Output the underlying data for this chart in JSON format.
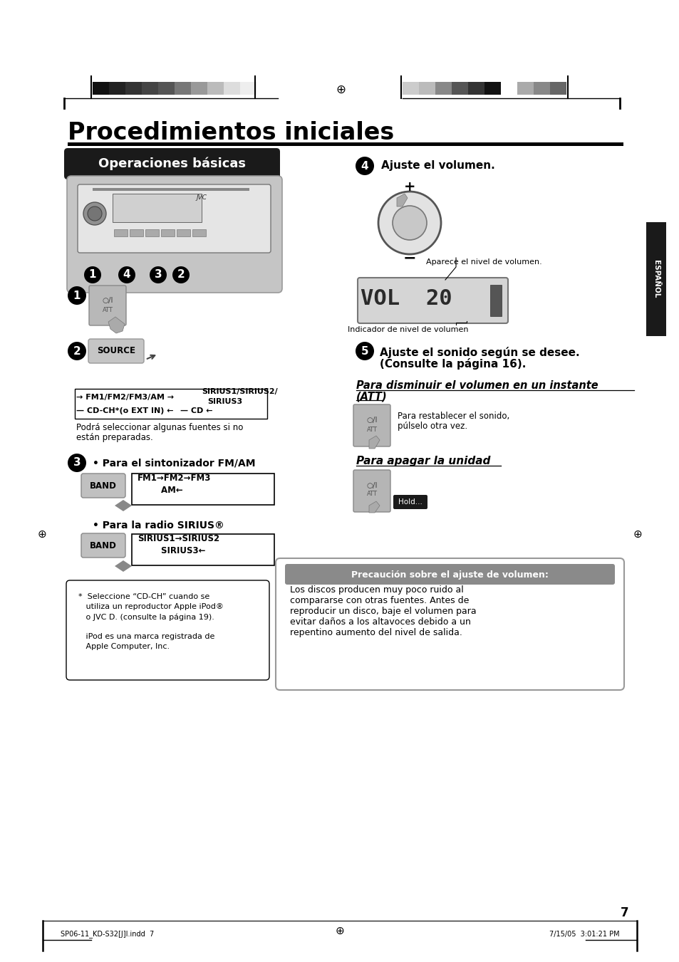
{
  "bg_color": "#ffffff",
  "page_title": "Procedimientos iniciales",
  "section_title": "Operaciones básicas",
  "section_bg": "#1a1a1a",
  "section_text_color": "#ffffff",
  "espanol_bg": "#1a1a1a",
  "espanol_text": "ESPAÑOL",
  "espanol_text_color": "#ffffff",
  "step4_title": "Ajuste el volumen.",
  "step4_sub1": "Aparece el nivel de volumen.",
  "step4_sub2": "Indicador de nivel de volumen",
  "step5_line1": "Ajuste el sonido según se desee.",
  "step5_line2": "(Consulte la página 16).",
  "att_title_line1": "Para disminuir el volumen en un instante",
  "att_title_line2": "(ATT)",
  "att_text1": "Para restablecer el sonido,",
  "att_text2": "púlselo otra vez.",
  "off_title": "Para apagar la unidad",
  "step3_fm": "• Para el sintonizador FM/AM",
  "step3_sirius": "• Para la radio SIRIUS®",
  "source_note1": "Podrá seleccionar algunas fuentes si no",
  "source_note2": "están preparadas.",
  "note_line1": "*  Seleccione “CD-CH” cuando se",
  "note_line2": "   utiliza un reproductor Apple iPod®",
  "note_line3": "   o JVC D. (consulte la página 19).",
  "note_line4": "",
  "note_line5": "   iPod es una marca registrada de",
  "note_line6": "   Apple Computer, Inc.",
  "caution_title": "Precaución sobre el ajuste de volumen:",
  "caution_text1": "Los discos producen muy poco ruido al",
  "caution_text2": "compararse con otras fuentes. Antes de",
  "caution_text3": "reproducir un disco, baje el volumen para",
  "caution_text4": "evitar daños a los altavoces debido a un",
  "caution_text5": "repentino aumento del nivel de salida.",
  "caution_bg": "#8a8a8a",
  "caution_title_color": "#ffffff",
  "footer_left": "SP06-11_KD-S32[J]I.indd  7",
  "footer_right": "7/15/05  3:01:21 PM",
  "footer_page": "7",
  "hold_text": "Hold...",
  "hold_bg": "#1a1a1a",
  "hold_text_color": "#ffffff",
  "colors_left_bar": [
    "#111111",
    "#222222",
    "#333333",
    "#444444",
    "#555555",
    "#777777",
    "#999999",
    "#bbbbbb",
    "#dddddd",
    "#eeeeee"
  ],
  "colors_right_bar": [
    "#cccccc",
    "#bbbbbb",
    "#888888",
    "#555555",
    "#333333",
    "#111111",
    "#ffffff",
    "#aaaaaa",
    "#888888",
    "#666666"
  ]
}
